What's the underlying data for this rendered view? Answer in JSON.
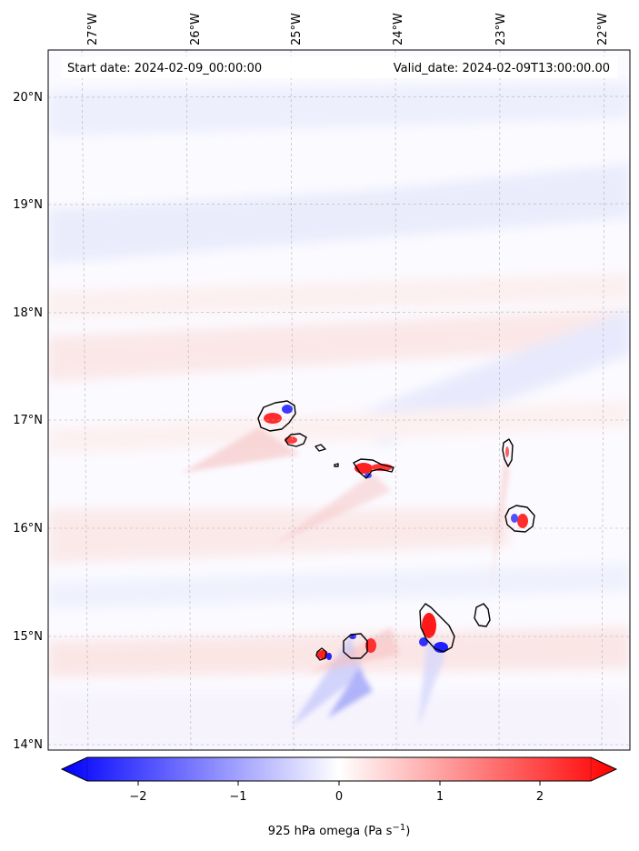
{
  "header": {
    "start_date": "Start date: 2024-02-09_00:00:00",
    "valid_date": "Valid_date: 2024-02-09T13:00:00.00"
  },
  "axes": {
    "lon_labels": [
      "27°W",
      "26°W",
      "25°W",
      "24°W",
      "23°W",
      "22°W"
    ],
    "lat_labels": [
      "20°N",
      "19°N",
      "18°N",
      "17°N",
      "16°N",
      "15°N",
      "14°N"
    ]
  },
  "colorbar": {
    "ticks": [
      "−2",
      "−1",
      "0",
      "1",
      "2"
    ],
    "label_main": "925 hPa omega (Pa s",
    "label_sup": "−1",
    "label_end": ")",
    "cmap": [
      "#0000ff",
      "#ffffff",
      "#ff0000"
    ],
    "range": [
      -2.7,
      2.7
    ]
  },
  "islands": [
    "santo-antao",
    "sao-vicente",
    "santa-luzia",
    "branco",
    "raso",
    "sao-nicolau",
    "sal",
    "boa-vista",
    "maio",
    "santiago",
    "fogo",
    "brava"
  ]
}
